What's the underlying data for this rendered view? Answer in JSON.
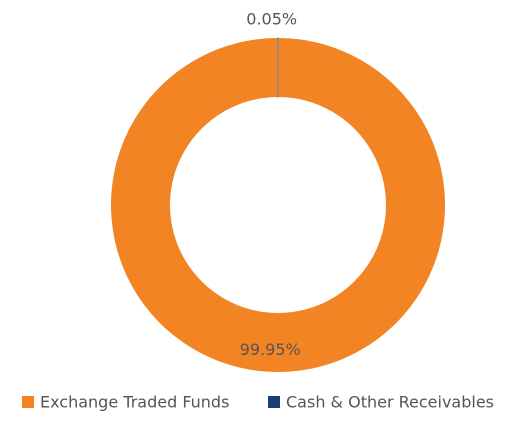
{
  "chart_data": {
    "type": "pie",
    "categories": [
      "Exchange Traded Funds",
      "Cash & Other Receivables"
    ],
    "values": [
      99.95,
      0.05
    ],
    "value_labels": [
      "99.95%",
      "0.05%"
    ],
    "colors": [
      "#f28423",
      "#1b3f72"
    ],
    "legend": "bottom"
  }
}
